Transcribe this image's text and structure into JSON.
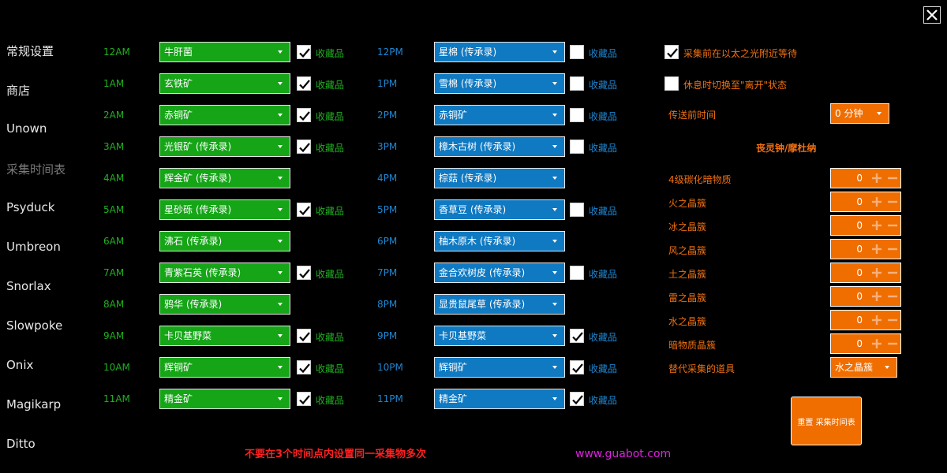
{
  "sidebar": {
    "items": [
      {
        "label": "常规设置",
        "active": false
      },
      {
        "label": "商店",
        "active": false
      },
      {
        "label": "Unown",
        "active": false
      },
      {
        "label": "采集时间表",
        "active": true
      },
      {
        "label": "Psyduck",
        "active": false
      },
      {
        "label": "Umbreon",
        "active": false
      },
      {
        "label": "Snorlax",
        "active": false
      },
      {
        "label": "Slowpoke",
        "active": false
      },
      {
        "label": "Onix",
        "active": false
      },
      {
        "label": "Magikarp",
        "active": false
      },
      {
        "label": "Ditto",
        "active": false
      }
    ]
  },
  "schedule": {
    "collectible_label": "收藏品",
    "am": [
      {
        "time": "12AM",
        "item": "牛肝菌",
        "checkbox": true,
        "checked": true
      },
      {
        "time": "1AM",
        "item": "玄铁矿",
        "checkbox": true,
        "checked": true
      },
      {
        "time": "2AM",
        "item": "赤铜矿",
        "checkbox": true,
        "checked": true
      },
      {
        "time": "3AM",
        "item": "光银矿 (传承录)",
        "checkbox": true,
        "checked": true
      },
      {
        "time": "4AM",
        "item": "辉金矿 (传承录)",
        "checkbox": false,
        "checked": false
      },
      {
        "time": "5AM",
        "item": "星砂砾 (传承录)",
        "checkbox": true,
        "checked": true
      },
      {
        "time": "6AM",
        "item": "沸石 (传承录)",
        "checkbox": false,
        "checked": false
      },
      {
        "time": "7AM",
        "item": "青紫石英 (传承录)",
        "checkbox": true,
        "checked": true
      },
      {
        "time": "8AM",
        "item": "鸦华 (传承录)",
        "checkbox": false,
        "checked": false
      },
      {
        "time": "9AM",
        "item": "卡贝基野菜",
        "checkbox": true,
        "checked": true
      },
      {
        "time": "10AM",
        "item": "辉铜矿",
        "checkbox": true,
        "checked": true
      },
      {
        "time": "11AM",
        "item": "精金矿",
        "checkbox": true,
        "checked": true
      }
    ],
    "pm": [
      {
        "time": "12PM",
        "item": "星棉 (传承录)",
        "checkbox": true,
        "checked": false
      },
      {
        "time": "1PM",
        "item": "雪棉 (传承录)",
        "checkbox": true,
        "checked": false
      },
      {
        "time": "2PM",
        "item": "赤铜矿",
        "checkbox": true,
        "checked": false
      },
      {
        "time": "3PM",
        "item": "樟木古树 (传承录)",
        "checkbox": true,
        "checked": false
      },
      {
        "time": "4PM",
        "item": "棕菇 (传承录)",
        "checkbox": false,
        "checked": false
      },
      {
        "time": "5PM",
        "item": "香草豆 (传承录)",
        "checkbox": true,
        "checked": false
      },
      {
        "time": "6PM",
        "item": "柚木原木 (传承录)",
        "checkbox": false,
        "checked": false
      },
      {
        "time": "7PM",
        "item": "金合欢树皮 (传承录)",
        "checkbox": true,
        "checked": false
      },
      {
        "time": "8PM",
        "item": "显贵鼠尾草 (传承录)",
        "checkbox": false,
        "checked": false
      },
      {
        "time": "9PM",
        "item": "卡贝基野菜",
        "checkbox": true,
        "checked": true
      },
      {
        "time": "10PM",
        "item": "辉铜矿",
        "checkbox": true,
        "checked": true
      },
      {
        "time": "11PM",
        "item": "精金矿",
        "checkbox": true,
        "checked": true
      }
    ]
  },
  "options": {
    "wait_aetheryte": {
      "label": "采集前在以太之光附近等待",
      "checked": true
    },
    "switch_afk": {
      "label": "休息时切换至\"离开\"状态",
      "checked": false
    },
    "teleport_delay": {
      "label": "传送前时间",
      "value": "0 分钟"
    }
  },
  "currency_section": {
    "title": "丧灵钟/摩杜纳",
    "items": [
      {
        "label": "4级碳化暗物质",
        "value": "0"
      },
      {
        "label": "火之晶簇",
        "value": "0"
      },
      {
        "label": "冰之晶簇",
        "value": "0"
      },
      {
        "label": "风之晶簇",
        "value": "0"
      },
      {
        "label": "土之晶簇",
        "value": "0"
      },
      {
        "label": "雷之晶簇",
        "value": "0"
      },
      {
        "label": "水之晶簇",
        "value": "0"
      },
      {
        "label": "暗物质晶簇",
        "value": "0"
      }
    ],
    "alt_item": {
      "label": "替代采集的道具",
      "value": "水之晶簇"
    }
  },
  "reset_button": "重置 采集时间表",
  "footer": {
    "warning": "不要在3个时间点内设置同一采集物多次",
    "website": "www.guabot.com"
  },
  "colors": {
    "am_accent": "#15a517",
    "pm_accent": "#0f79c2",
    "orange_accent": "#f06e00",
    "warning": "#ff2020",
    "website": "#e020e0"
  }
}
